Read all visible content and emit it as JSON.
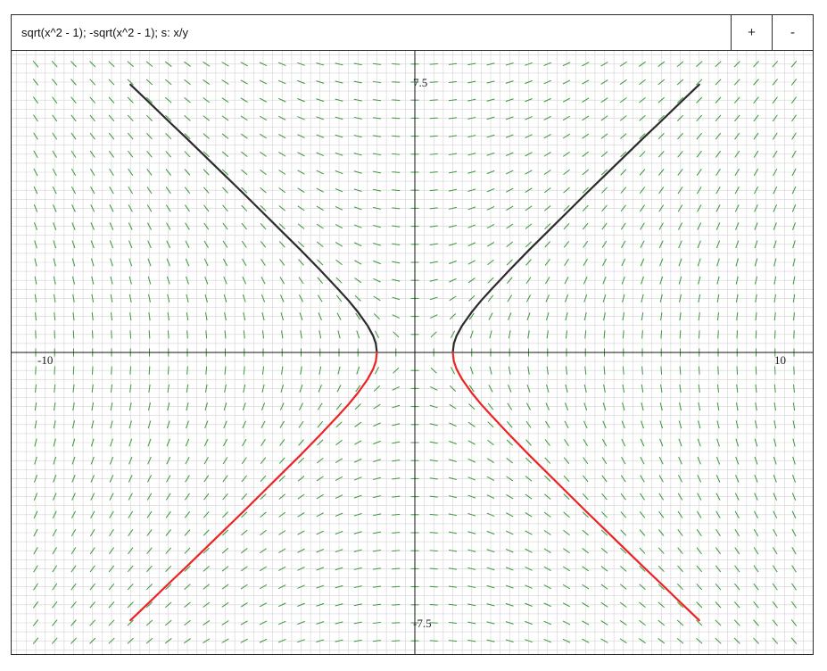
{
  "toolbar": {
    "expression": "sqrt(x^2 - 1); -sqrt(x^2 - 1); s: x/y",
    "zoom_in_label": "+",
    "zoom_out_label": "-"
  },
  "colors": {
    "grid_minor": "#d2d2d2",
    "axis": "#111111",
    "slope_field": "#3a9a3a",
    "curve_positive": "#2b2b2b",
    "curve_negative": "#ee2222"
  },
  "chart_data": {
    "type": "line",
    "xlim": [
      -10,
      10
    ],
    "ylim": [
      -8.5,
      8.5
    ],
    "grid": true,
    "x_tick_labels": [
      {
        "value": -10,
        "label": "-10"
      },
      {
        "value": 10,
        "label": "10"
      }
    ],
    "y_tick_labels": [
      {
        "value": 7.5,
        "label": "7.5"
      },
      {
        "value": -7.5,
        "label": "-7.5"
      }
    ],
    "slope_field": {
      "expression": "x/y",
      "x_range": [
        -10,
        10
      ],
      "y_range": [
        -8.5,
        8.5
      ],
      "step": 0.5
    },
    "series": [
      {
        "expression": "sqrt(x^2 - 1)",
        "color": "#2b2b2b",
        "x": [
          -7.5,
          -7,
          -6.5,
          -6,
          -5.5,
          -5,
          -4.5,
          -4,
          -3.5,
          -3,
          -2.5,
          -2,
          -1.75,
          -1.5,
          -1.25,
          -1.1,
          -1.03,
          -1,
          1,
          1.03,
          1.1,
          1.25,
          1.5,
          1.75,
          2,
          2.5,
          3,
          3.5,
          4,
          4.5,
          5,
          5.5,
          6,
          6.5,
          7,
          7.5
        ],
        "y": [
          7.43,
          6.93,
          6.42,
          5.92,
          5.41,
          4.9,
          4.39,
          3.87,
          3.35,
          2.83,
          2.29,
          1.73,
          1.44,
          1.12,
          0.75,
          0.46,
          0.25,
          0,
          0,
          0.25,
          0.46,
          0.75,
          1.12,
          1.44,
          1.73,
          2.29,
          2.83,
          3.35,
          3.87,
          4.39,
          4.9,
          5.41,
          5.92,
          6.42,
          6.93,
          7.43
        ]
      },
      {
        "expression": "-sqrt(x^2 - 1)",
        "color": "#ee2222",
        "x": [
          -7.5,
          -7,
          -6.5,
          -6,
          -5.5,
          -5,
          -4.5,
          -4,
          -3.5,
          -3,
          -2.5,
          -2,
          -1.75,
          -1.5,
          -1.25,
          -1.1,
          -1.03,
          -1,
          1,
          1.03,
          1.1,
          1.25,
          1.5,
          1.75,
          2,
          2.5,
          3,
          3.5,
          4,
          4.5,
          5,
          5.5,
          6,
          6.5,
          7,
          7.5
        ],
        "y": [
          -7.43,
          -6.93,
          -6.42,
          -5.92,
          -5.41,
          -4.9,
          -4.39,
          -3.87,
          -3.35,
          -2.83,
          -2.29,
          -1.73,
          -1.44,
          -1.12,
          -0.75,
          -0.46,
          -0.25,
          0,
          0,
          -0.25,
          -0.46,
          -0.75,
          -1.12,
          -1.44,
          -1.73,
          -2.29,
          -2.83,
          -3.35,
          -3.87,
          -4.39,
          -4.9,
          -5.41,
          -5.92,
          -6.42,
          -6.93,
          -7.43
        ]
      }
    ]
  }
}
